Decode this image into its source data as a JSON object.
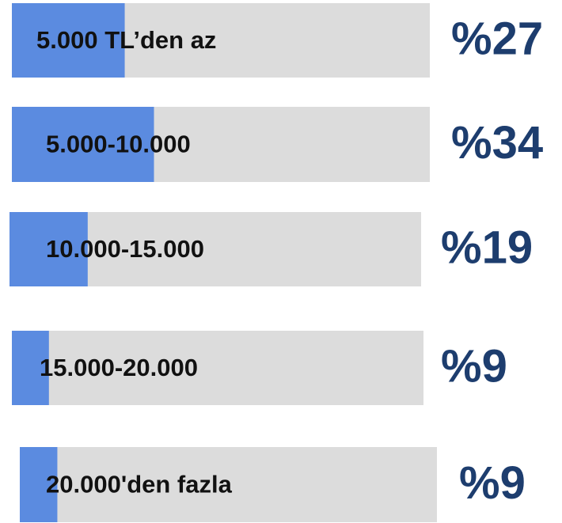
{
  "chart_data": {
    "type": "bar",
    "categories": [
      "5.000 TL’den az",
      "5.000-10.000",
      "10.000-15.000",
      "15.000-20.000",
      "20.000'den fazla"
    ],
    "values": [
      27,
      34,
      19,
      9,
      9
    ],
    "value_labels": [
      "%27",
      "%34",
      "%19",
      "%9",
      "%9"
    ],
    "xlim": [
      0,
      100
    ],
    "color": "#5b8be0",
    "track_color": "#dcdcdc",
    "label_color": "#1d3d6e"
  }
}
